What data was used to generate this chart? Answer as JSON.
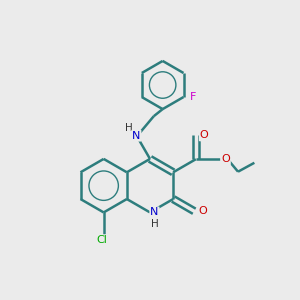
{
  "bg_color": "#ebebeb",
  "bond_color": "#2d7d7d",
  "bond_width": 1.8,
  "atom_colors": {
    "N": "#0000cc",
    "O": "#cc0000",
    "Cl": "#00aa00",
    "F": "#cc00cc",
    "C": "#2d7d7d",
    "H": "#333333"
  },
  "figsize": [
    3.0,
    3.0
  ],
  "dpi": 100,
  "xlim": [
    0,
    10
  ],
  "ylim": [
    0,
    10
  ]
}
